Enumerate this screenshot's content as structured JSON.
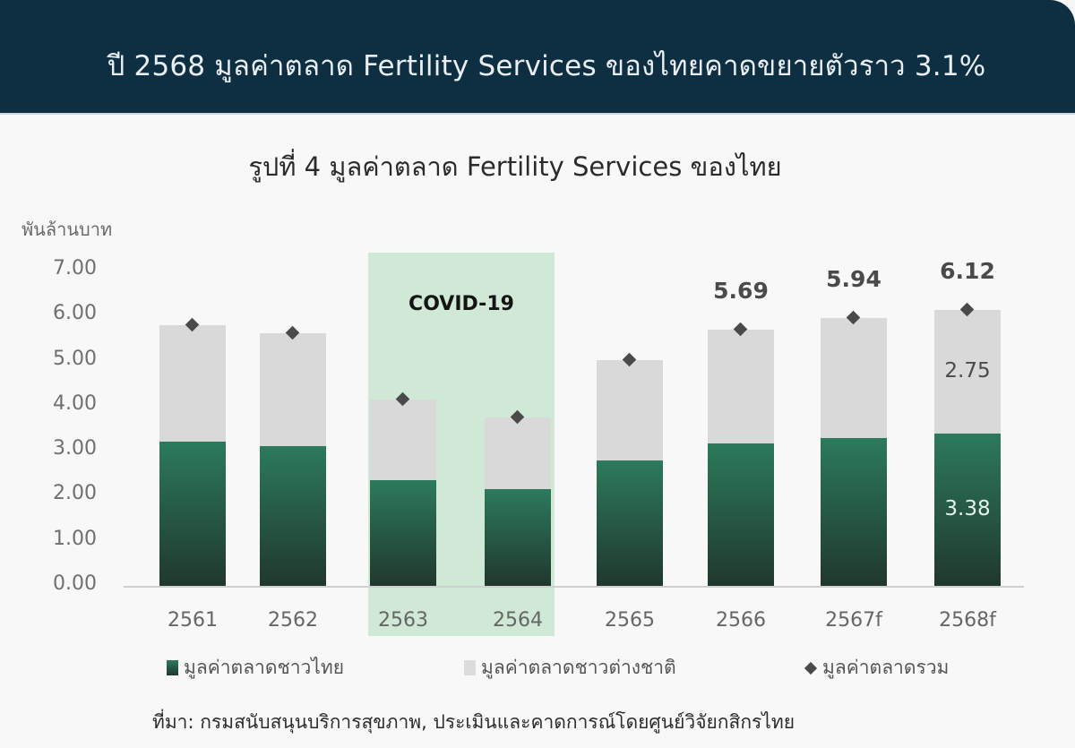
{
  "header": {
    "title": "ปี 2568 มูลค่าตลาด Fertility Services ของไทยคาดขยายตัวราว 3.1%",
    "background": "#0e2e41"
  },
  "chart_data": {
    "type": "bar",
    "stacked": true,
    "title": "รูปที่ 4 มูลค่าตลาด Fertility Services ของไทย",
    "ylabel": "พันล้านบาท",
    "xlabel": "",
    "ylim": [
      0,
      7
    ],
    "yticks": [
      "0.00",
      "1.00",
      "2.00",
      "3.00",
      "4.00",
      "5.00",
      "6.00",
      "7.00"
    ],
    "grid": false,
    "categories": [
      "2561",
      "2562",
      "2563",
      "2564",
      "2565",
      "2566",
      "2567f",
      "2568f"
    ],
    "series": [
      {
        "name": "มูลค่าตลาดชาวไทย",
        "kind": "bar",
        "color": "#2c7a5c",
        "values": [
          3.2,
          3.1,
          2.35,
          2.15,
          2.78,
          3.16,
          3.28,
          3.38
        ]
      },
      {
        "name": "มูลค่าตลาดชาวต่างชาติ",
        "kind": "bar",
        "color": "#d9d9d9",
        "values": [
          2.59,
          2.51,
          1.79,
          1.59,
          2.23,
          2.53,
          2.66,
          2.75
        ]
      },
      {
        "name": "มูลค่าตลาดรวม",
        "kind": "marker-diamond",
        "color": "#4a4a4a",
        "values": [
          5.79,
          5.61,
          4.14,
          3.74,
          5.01,
          5.69,
          5.94,
          6.12
        ]
      }
    ],
    "data_labels": {
      "totals": {
        "2566": "5.69",
        "2567f": "5.94",
        "2568f": "6.12"
      },
      "foreign_2568f": "2.75",
      "thai_2568f": "3.38"
    },
    "annotations": [
      {
        "text": "COVID-19",
        "span": [
          "2563",
          "2564"
        ],
        "color": "#cfe9d6"
      }
    ],
    "legend": {
      "position": "bottom",
      "entries": [
        "มูลค่าตลาดชาวไทย",
        "มูลค่าตลาดชาวต่างชาติ",
        "มูลค่าตลาดรวม"
      ]
    }
  },
  "source": "ที่มา: กรมสนับสนุนบริการสุขภาพ, ประเมินและคาดการณ์โดยศูนย์วิจัยกสิกรไทย"
}
